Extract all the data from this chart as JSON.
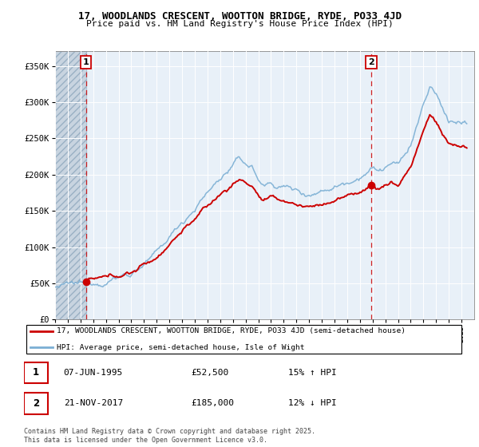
{
  "title_line1": "17, WOODLANDS CRESCENT, WOOTTON BRIDGE, RYDE, PO33 4JD",
  "title_line2": "Price paid vs. HM Land Registry's House Price Index (HPI)",
  "ylim": [
    0,
    370000
  ],
  "yticks": [
    0,
    50000,
    100000,
    150000,
    200000,
    250000,
    300000,
    350000
  ],
  "ytick_labels": [
    "£0",
    "£50K",
    "£100K",
    "£150K",
    "£200K",
    "£250K",
    "£300K",
    "£350K"
  ],
  "x_start_year": 1993,
  "x_end_year": 2026,
  "sale1_year": 1995.44,
  "sale1_price": 52500,
  "sale2_year": 2017.89,
  "sale2_price": 185000,
  "sale1_label": "1",
  "sale2_label": "2",
  "sale1_date": "07-JUN-1995",
  "sale1_amount": "£52,500",
  "sale1_hpi": "15% ↑ HPI",
  "sale2_date": "21-NOV-2017",
  "sale2_amount": "£185,000",
  "sale2_hpi": "12% ↓ HPI",
  "legend_label1": "17, WOODLANDS CRESCENT, WOOTTON BRIDGE, RYDE, PO33 4JD (semi-detached house)",
  "legend_label2": "HPI: Average price, semi-detached house, Isle of Wight",
  "footer": "Contains HM Land Registry data © Crown copyright and database right 2025.\nThis data is licensed under the Open Government Licence v3.0.",
  "line_color_red": "#cc0000",
  "line_color_blue": "#7bafd4",
  "background_plot": "#e8f0f8",
  "hatch_color": "#c8d4e0",
  "grid_color": "#ffffff"
}
